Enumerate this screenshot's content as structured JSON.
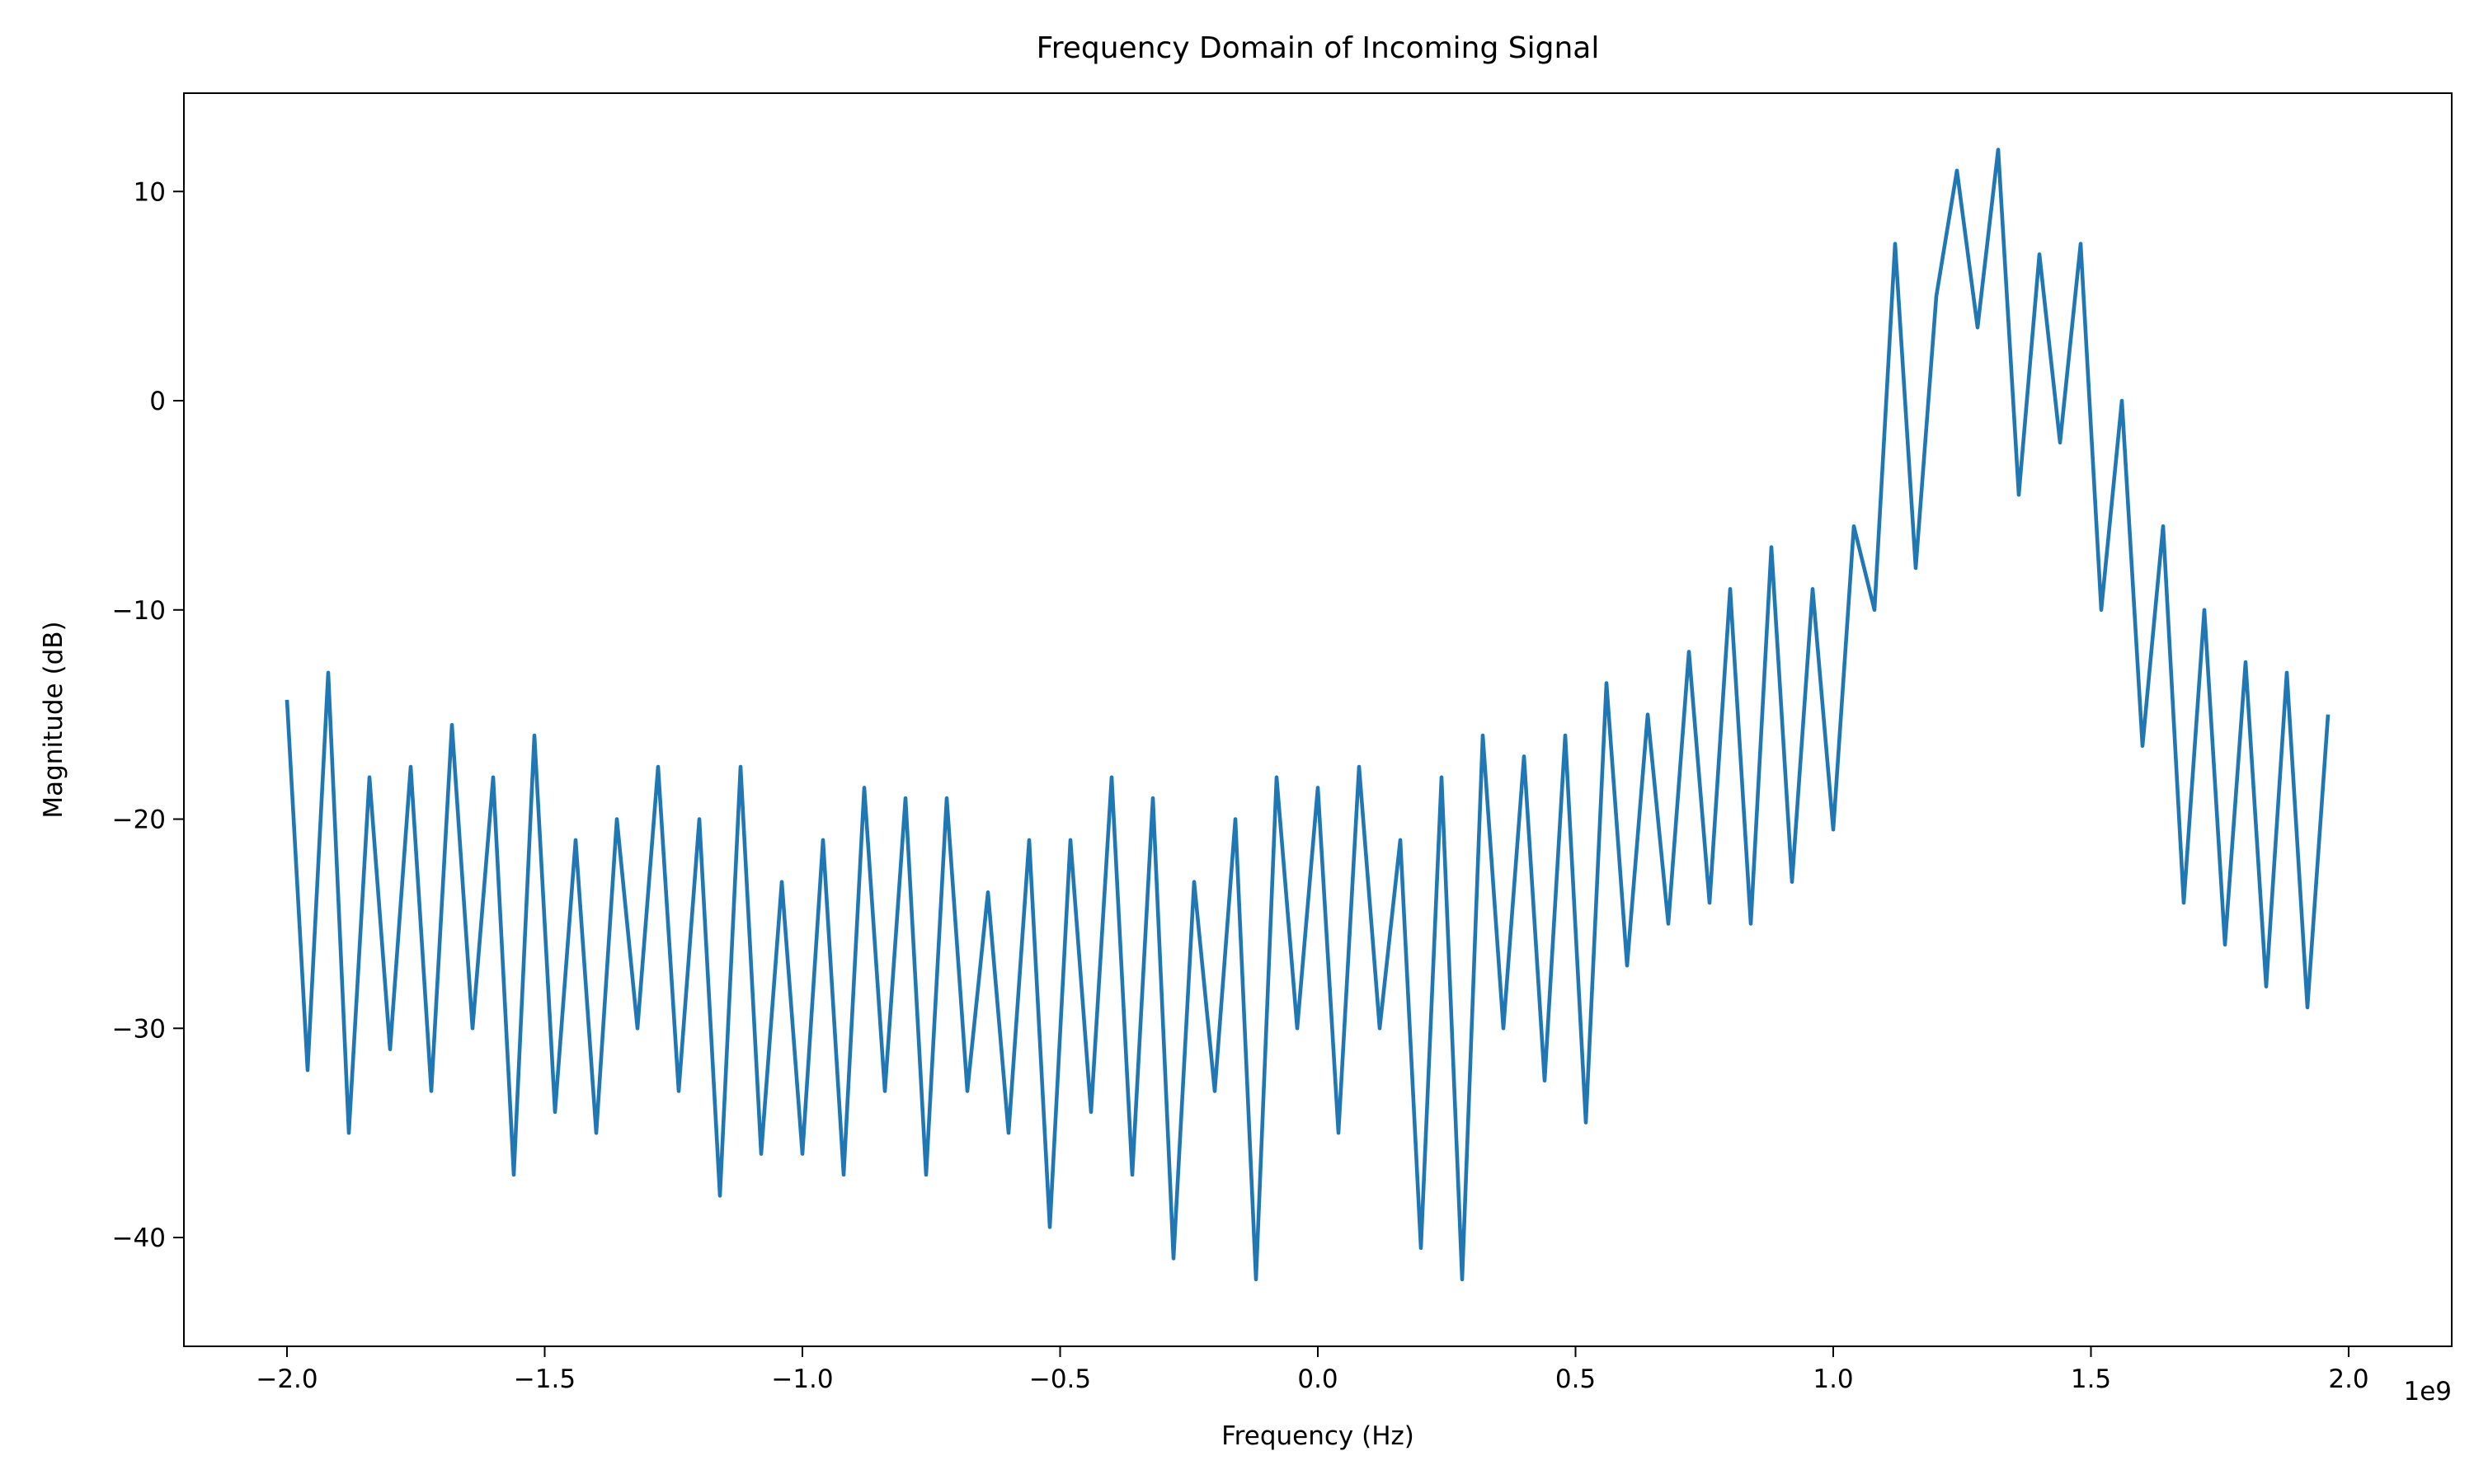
{
  "chart_data": {
    "type": "line",
    "title": "Frequency Domain of Incoming Signal",
    "x_label": "Frequency (Hz)",
    "y_label": "Magnitude (dB)",
    "x_offset_label": "1e9",
    "x": [
      -2000000000,
      -1960000000,
      -1920000000,
      -1880000000,
      -1840000000,
      -1800000000,
      -1760000000,
      -1720000000,
      -1680000000,
      -1640000000,
      -1600000000,
      -1560000000,
      -1520000000,
      -1480000000,
      -1440000000,
      -1400000000,
      -1360000000,
      -1320000000,
      -1280000000,
      -1240000000,
      -1200000000,
      -1160000000,
      -1120000000,
      -1080000000,
      -1040000000,
      -1000000000,
      -960000000,
      -920000000,
      -880000000,
      -840000000,
      -800000000,
      -760000000,
      -720000000,
      -680000000,
      -640000000,
      -600000000,
      -560000000,
      -520000000,
      -480000000,
      -440000000,
      -400000000,
      -360000000,
      -320000000,
      -280000000,
      -240000000,
      -200000000,
      -160000000,
      -120000000,
      -80000000,
      -40000000,
      0,
      40000000,
      80000000,
      120000000,
      160000000,
      200000000,
      240000000,
      280000000,
      320000000,
      360000000,
      400000000,
      440000000,
      480000000,
      520000000,
      560000000,
      600000000,
      640000000,
      680000000,
      720000000,
      760000000,
      800000000,
      840000000,
      880000000,
      920000000,
      960000000,
      1000000000,
      1040000000,
      1080000000,
      1120000000,
      1160000000,
      1200000000,
      1240000000,
      1280000000,
      1320000000,
      1360000000,
      1400000000,
      1440000000,
      1480000000,
      1520000000,
      1560000000,
      1600000000,
      1640000000,
      1680000000,
      1720000000,
      1760000000,
      1800000000,
      1840000000,
      1880000000,
      1920000000,
      1960000000
    ],
    "series": [
      {
        "name": "Magnitude",
        "color": "#1f77b4",
        "values": [
          -14.3,
          -32,
          -13,
          -35,
          -18,
          -31,
          -17.5,
          -33,
          -15.5,
          -30,
          -18,
          -37,
          -16,
          -34,
          -21,
          -35,
          -20,
          -30,
          -17.5,
          -33,
          -20,
          -38,
          -17.5,
          -36,
          -23,
          -36,
          -21,
          -37,
          -18.5,
          -33,
          -19,
          -37,
          -19,
          -33,
          -23.5,
          -35,
          -21,
          -39.5,
          -21,
          -34,
          -18,
          -37,
          -19,
          -41,
          -23,
          -33,
          -20,
          -42,
          -18,
          -30,
          -18.5,
          -35,
          -17.5,
          -30,
          -21,
          -40.5,
          -18,
          -42,
          -16,
          -30,
          -17,
          -32.5,
          -16,
          -34.5,
          -13.5,
          -27,
          -15,
          -25,
          -12,
          -24,
          -9,
          -25,
          -7,
          -23,
          -9,
          -20.5,
          -6,
          -10,
          7.5,
          -8,
          5,
          11,
          3.5,
          12,
          -4.5,
          7,
          -2,
          7.5,
          -10,
          0,
          -16.5,
          -6,
          -24,
          -10,
          -26,
          -12.5,
          -28,
          -13,
          -29,
          -15
        ]
      }
    ],
    "xlim": [
      -2200000000,
      2200000000
    ],
    "ylim": [
      -45.2,
      14.7
    ],
    "xticks": [
      {
        "value": -2000000000,
        "label": "−2.0"
      },
      {
        "value": -1500000000,
        "label": "−1.5"
      },
      {
        "value": -1000000000,
        "label": "−1.0"
      },
      {
        "value": -500000000,
        "label": "−0.5"
      },
      {
        "value": 0,
        "label": "0.0"
      },
      {
        "value": 500000000,
        "label": "0.5"
      },
      {
        "value": 1000000000,
        "label": "1.0"
      },
      {
        "value": 1500000000,
        "label": "1.5"
      },
      {
        "value": 2000000000,
        "label": "2.0"
      }
    ],
    "yticks": [
      {
        "value": -40,
        "label": "−40"
      },
      {
        "value": -30,
        "label": "−30"
      },
      {
        "value": -20,
        "label": "−20"
      },
      {
        "value": -10,
        "label": "−10"
      },
      0,
      10
    ],
    "grid": false
  }
}
